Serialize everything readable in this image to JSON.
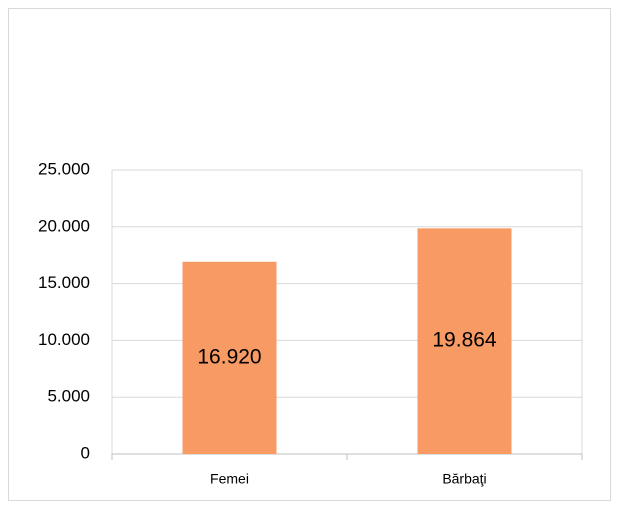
{
  "chart_data": {
    "type": "bar",
    "categories": [
      "Femei",
      "Bărbaţi"
    ],
    "values": [
      16920,
      19864
    ],
    "value_labels": [
      "16.920",
      "19.864"
    ],
    "color": "#f79a63",
    "ylim": [
      0,
      25000
    ],
    "yticks": [
      0,
      {
        "value": 5000,
        "label": "5.000"
      },
      {
        "value": 10000,
        "label": "10.000"
      },
      {
        "value": 15000,
        "label": "15.000"
      },
      {
        "value": 20000,
        "label": "20.000"
      },
      {
        "value": 25000,
        "label": "25.000"
      }
    ],
    "grid": true
  }
}
